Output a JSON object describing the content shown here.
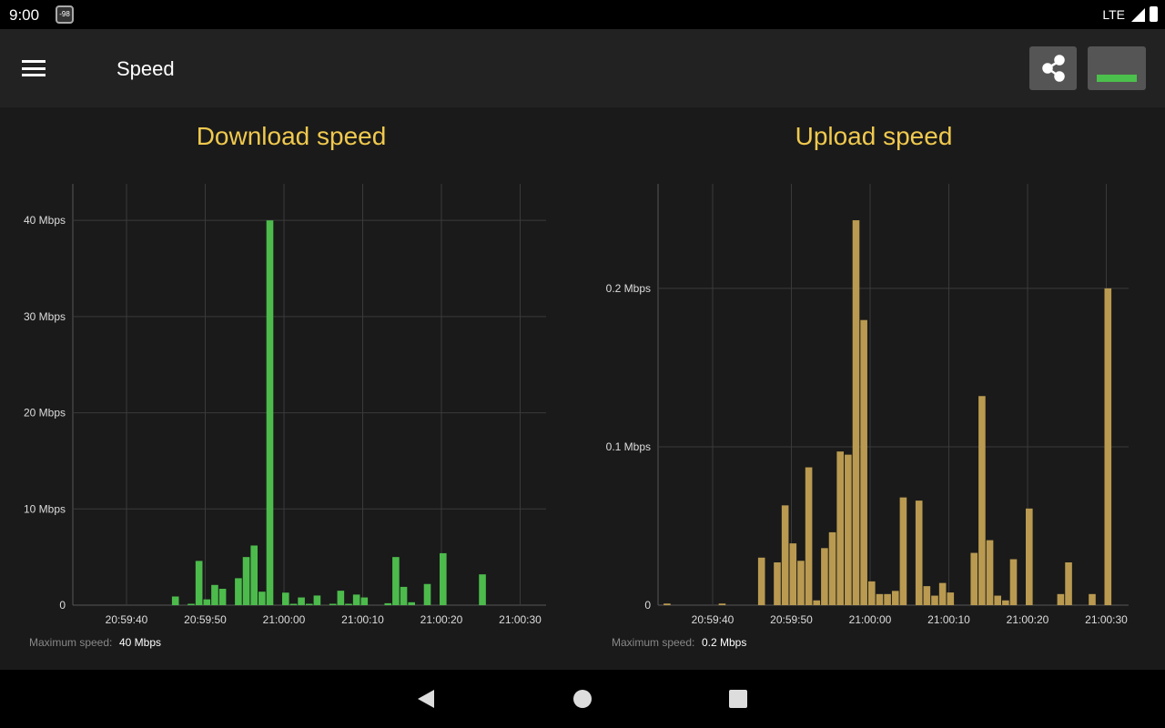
{
  "status_bar": {
    "time": "9:00",
    "badge": "-98",
    "network": "LTE"
  },
  "app_bar": {
    "title": "Speed",
    "menu_icon": "hamburger-menu-icon",
    "share_icon": "share-icon"
  },
  "colors": {
    "download": "#4cbb4c",
    "upload": "#b99a50",
    "title": "#f0c94e"
  },
  "footer": {
    "max_label": "Maximum speed:"
  },
  "chart_data": [
    {
      "type": "bar",
      "title": "Download speed",
      "max_speed": "40 Mbps",
      "grid": true,
      "x_ticks": [
        "20:59:40",
        "20:59:50",
        "21:00:00",
        "21:00:10",
        "21:00:20",
        "21:00:30"
      ],
      "y_ticks": [
        {
          "v": 0,
          "label": "0"
        },
        {
          "v": 10,
          "label": "10 Mbps"
        },
        {
          "v": 20,
          "label": "20 Mbps"
        },
        {
          "v": 30,
          "label": "30 Mbps"
        },
        {
          "v": 40,
          "label": "40 Mbps"
        }
      ],
      "ylim": [
        0,
        43.8
      ],
      "unit": "Mbps",
      "x": [
        "20:59:46",
        "20:59:48",
        "20:59:49",
        "20:59:50",
        "20:59:51",
        "20:59:52",
        "20:59:54",
        "20:59:55",
        "20:59:56",
        "20:59:57",
        "20:59:58",
        "21:00:00",
        "21:00:01",
        "21:00:02",
        "21:00:03",
        "21:00:04",
        "21:00:06",
        "21:00:07",
        "21:00:08",
        "21:00:09",
        "21:00:10",
        "21:00:13",
        "21:00:14",
        "21:00:15",
        "21:00:16",
        "21:00:18",
        "21:00:20",
        "21:00:25"
      ],
      "values": [
        0.9,
        0.1,
        4.6,
        0.6,
        2.1,
        1.7,
        2.8,
        5.0,
        6.2,
        1.4,
        40,
        1.3,
        0.1,
        0.8,
        0.1,
        1.0,
        0.1,
        1.5,
        0.1,
        1.1,
        0.8,
        0.2,
        5.0,
        1.9,
        0.3,
        2.2,
        5.4,
        3.2
      ]
    },
    {
      "type": "bar",
      "title": "Upload speed",
      "max_speed": "0.2 Mbps",
      "grid": true,
      "x_ticks": [
        "20:59:40",
        "20:59:50",
        "21:00:00",
        "21:00:10",
        "21:00:20",
        "21:00:30"
      ],
      "y_ticks": [
        {
          "v": 0,
          "label": "0"
        },
        {
          "v": 0.1,
          "label": "0.1 Mbps"
        },
        {
          "v": 0.2,
          "label": "0.2 Mbps"
        }
      ],
      "ylim": [
        0,
        0.266
      ],
      "unit": "Mbps",
      "x": [
        "20:59:34",
        "20:59:41",
        "20:59:46",
        "20:59:48",
        "20:59:49",
        "20:59:50",
        "20:59:51",
        "20:59:52",
        "20:59:53",
        "20:59:54",
        "20:59:55",
        "20:59:56",
        "20:59:57",
        "20:59:58",
        "20:59:59",
        "21:00:00",
        "21:00:01",
        "21:00:02",
        "21:00:03",
        "21:00:04",
        "21:00:06",
        "21:00:07",
        "21:00:08",
        "21:00:09",
        "21:00:10",
        "21:00:13",
        "21:00:14",
        "21:00:15",
        "21:00:16",
        "21:00:17",
        "21:00:18",
        "21:00:20",
        "21:00:24",
        "21:00:25",
        "21:00:28",
        "21:00:30"
      ],
      "values": [
        0.001,
        0.001,
        0.03,
        0.027,
        0.063,
        0.039,
        0.028,
        0.087,
        0.003,
        0.036,
        0.046,
        0.097,
        0.095,
        0.243,
        0.18,
        0.015,
        0.007,
        0.007,
        0.009,
        0.068,
        0.066,
        0.012,
        0.006,
        0.014,
        0.008,
        0.033,
        0.132,
        0.041,
        0.006,
        0.003,
        0.029,
        0.061,
        0.007,
        0.027,
        0.007,
        0.2
      ]
    }
  ]
}
